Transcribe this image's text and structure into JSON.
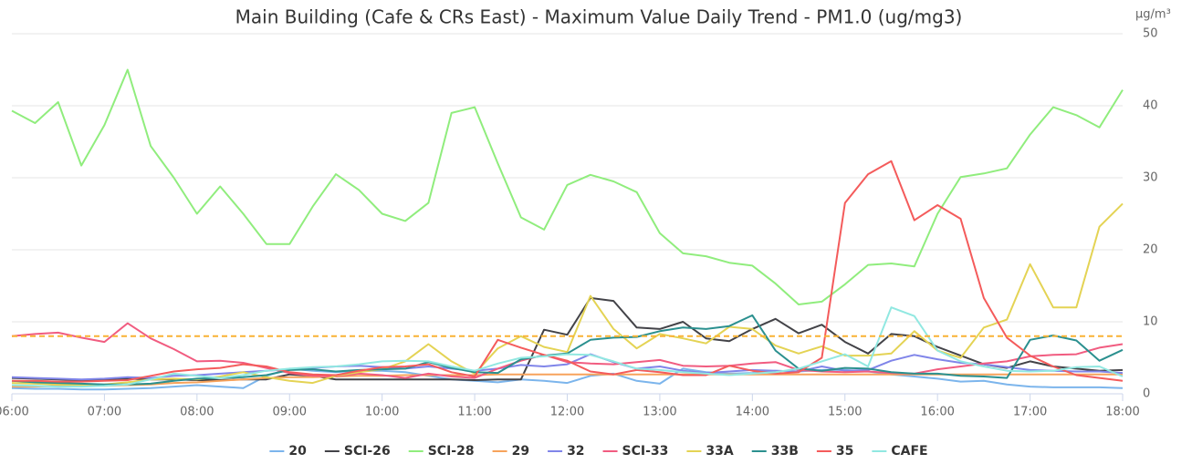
{
  "chart_data": {
    "type": "line",
    "title": "Main Building (Cafe & CRs East) - Maximum Value Daily Trend - PM1.0 (ug/mg3)",
    "y_unit": "µg/m³",
    "categories": [
      "06:00",
      null,
      null,
      null,
      "07:00",
      null,
      null,
      null,
      "08:00",
      null,
      null,
      null,
      "09:00",
      null,
      null,
      null,
      "10:00",
      null,
      null,
      null,
      "11:00",
      null,
      null,
      null,
      "12:00",
      null,
      null,
      null,
      "13:00",
      null,
      null,
      null,
      "14:00",
      null,
      null,
      null,
      "15:00",
      null,
      null,
      null,
      "16:00",
      null,
      null,
      null,
      "17:00",
      null,
      null,
      null,
      "18:00"
    ],
    "ylim": [
      0,
      50
    ],
    "yticks": [
      0,
      10,
      20,
      30,
      40,
      50
    ],
    "grid": true,
    "y_axis_side": "right",
    "legend": "bottom",
    "reference_line": {
      "value": 8,
      "color": "#f9b234"
    },
    "series": [
      {
        "name": "20",
        "color": "#7cb5ec",
        "values": [
          0.8,
          0.7,
          0.7,
          0.6,
          0.6,
          0.7,
          0.8,
          1,
          1.2,
          1,
          0.8,
          2.5,
          3.5,
          3.2,
          3,
          3.2,
          3.2,
          3,
          2.5,
          2,
          1.8,
          1.6,
          2,
          1.8,
          1.5,
          2.5,
          2.8,
          1.8,
          1.4,
          3.5,
          3,
          2.8,
          2.9,
          3.2,
          3.1,
          3.3,
          3.3,
          3.1,
          2.7,
          2.4,
          2.1,
          1.7,
          1.8,
          1.3,
          1,
          0.9,
          0.9,
          0.9,
          0.8
        ]
      },
      {
        "name": "SCI-26",
        "color": "#434348",
        "values": [
          2.2,
          2.1,
          2,
          1.9,
          2,
          2.1,
          2,
          2,
          1.9,
          1.9,
          2,
          2,
          2.7,
          2.5,
          2,
          2,
          2,
          2,
          2,
          2,
          1.9,
          2,
          2,
          8.9,
          8.2,
          13.3,
          12.9,
          9.2,
          9,
          10,
          7.7,
          7.3,
          9,
          10.4,
          8.4,
          9.6,
          7.2,
          5.6,
          8.3,
          8,
          6.5,
          5.3,
          4.1,
          3.6,
          4.5,
          3.8,
          3.5,
          3.2,
          3.3
        ]
      },
      {
        "name": "SCI-28",
        "color": "#90ed7d",
        "values": [
          39.3,
          37.6,
          40.5,
          31.7,
          37.3,
          45,
          34.4,
          30,
          25,
          28.8,
          25,
          20.8,
          20.8,
          26,
          30.5,
          28.3,
          25,
          24,
          26.5,
          39,
          39.8,
          32,
          24.5,
          22.8,
          29,
          30.4,
          29.5,
          28,
          22.3,
          19.5,
          19.1,
          18.2,
          17.8,
          15.3,
          12.4,
          12.8,
          15.2,
          17.9,
          18.1,
          17.7,
          25,
          30.1,
          30.6,
          31.3,
          36,
          39.8,
          38.7,
          37,
          42.2
        ]
      },
      {
        "name": "29",
        "color": "#f7a35c",
        "values": [
          1,
          1,
          1.1,
          1.2,
          1.1,
          1.2,
          1.3,
          1.5,
          1.6,
          1.8,
          2,
          2.2,
          2.3,
          2.3,
          2.4,
          2.5,
          2.5,
          2.6,
          2.6,
          2.6,
          2.6,
          2.7,
          2.7,
          2.7,
          2.7,
          2.7,
          2.7,
          2.7,
          2.7,
          2.7,
          2.7,
          2.7,
          2.7,
          2.7,
          2.7,
          2.7,
          2.7,
          2.7,
          2.7,
          2.7,
          2.7,
          2.7,
          2.7,
          2.7,
          2.7,
          2.7,
          2.7,
          2.7,
          2.7
        ]
      },
      {
        "name": "32",
        "color": "#8085e9",
        "values": [
          2.3,
          2.2,
          2.1,
          2,
          2.1,
          2.3,
          2.2,
          2.5,
          2.6,
          2.8,
          3,
          3.2,
          3.4,
          3.6,
          3.8,
          3.9,
          3.7,
          3.5,
          3.8,
          3.5,
          3.2,
          3.5,
          4,
          3.8,
          4.1,
          5.5,
          4.4,
          3.5,
          3.8,
          3.2,
          2.9,
          3.1,
          3.3,
          3.2,
          3.1,
          3.8,
          3.2,
          3.3,
          4.6,
          5.4,
          4.8,
          4.3,
          4.1,
          3.7,
          3.3,
          3.2,
          3.1,
          3.1,
          2.9
        ]
      },
      {
        "name": "SCI-33",
        "color": "#f15c80",
        "values": [
          8,
          8.3,
          8.5,
          7.8,
          7.2,
          9.8,
          7.7,
          6.2,
          4.5,
          4.6,
          4.3,
          3.6,
          2.9,
          2.5,
          2.4,
          2.8,
          2.6,
          2.2,
          2.8,
          2.4,
          2.2,
          3.5,
          4.6,
          5.4,
          4.4,
          4.2,
          4.1,
          4.4,
          4.7,
          3.9,
          3.8,
          3.9,
          4.2,
          4.4,
          3.3,
          3.1,
          3,
          3.1,
          2.9,
          2.8,
          3.4,
          3.8,
          4.2,
          4.5,
          5.2,
          5.4,
          5.5,
          6.4,
          6.9
        ]
      },
      {
        "name": "33A",
        "color": "#e4d354",
        "values": [
          1.5,
          1.4,
          1.3,
          1.2,
          1.3,
          1.6,
          2,
          2.1,
          2,
          2.4,
          3,
          2.3,
          1.8,
          1.5,
          2.5,
          3,
          3.4,
          4.5,
          6.9,
          4.5,
          2.8,
          6.3,
          8,
          6.5,
          5.8,
          13.6,
          9,
          6.3,
          8.3,
          7.7,
          7,
          9.3,
          9,
          6.7,
          5.6,
          6.6,
          5.3,
          5.3,
          5.6,
          8.7,
          6,
          5,
          9.2,
          10.3,
          18,
          12,
          12,
          23.2,
          26.4
        ]
      },
      {
        "name": "33B",
        "color": "#2b908f",
        "values": [
          1.8,
          1.6,
          1.5,
          1.4,
          1.3,
          1.3,
          1.4,
          1.8,
          2.1,
          2.2,
          2.3,
          2.6,
          3.3,
          3.4,
          3.1,
          3.3,
          3.4,
          3.5,
          4.4,
          3.6,
          3,
          2.9,
          4.8,
          5.3,
          5.6,
          7.5,
          7.8,
          7.9,
          8.7,
          9.2,
          9,
          9.4,
          10.9,
          6,
          3.5,
          3.2,
          3.6,
          3.5,
          3,
          2.8,
          2.8,
          2.5,
          2.4,
          2.2,
          7.5,
          8.1,
          7.4,
          4.6,
          6.1
        ]
      },
      {
        "name": "35",
        "color": "#f45b5b",
        "values": [
          1.8,
          1.8,
          1.7,
          1.7,
          1.8,
          1.9,
          2.5,
          3.1,
          3.4,
          3.6,
          4.1,
          3.8,
          3,
          2.7,
          2.6,
          3.2,
          3.7,
          3.8,
          4.1,
          3,
          2.4,
          7.5,
          6.4,
          5.4,
          4.6,
          3.1,
          2.7,
          3.3,
          3,
          2.6,
          2.6,
          3.9,
          3.2,
          2.8,
          3,
          5,
          26.5,
          30.5,
          32.3,
          24.1,
          26.2,
          24.3,
          13.3,
          7.8,
          5.3,
          3.8,
          2.6,
          2.2,
          1.8
        ]
      },
      {
        "name": "CAFE",
        "color": "#91e8e1",
        "values": [
          1.2,
          1.1,
          1,
          1,
          1.1,
          1.3,
          2,
          2.8,
          2.5,
          2.2,
          2.6,
          3.2,
          3.5,
          3.7,
          3.8,
          4.1,
          4.5,
          4.6,
          4.5,
          3.8,
          3.2,
          4.2,
          5,
          5.2,
          5.5,
          5.4,
          4.5,
          3.5,
          3.3,
          3,
          2.8,
          2.6,
          2.8,
          3,
          3.5,
          4.5,
          5.5,
          3.8,
          12,
          10.8,
          6,
          4.5,
          3.8,
          3.2,
          3.1,
          3.2,
          3.7,
          3.8,
          2.4
        ]
      }
    ]
  }
}
